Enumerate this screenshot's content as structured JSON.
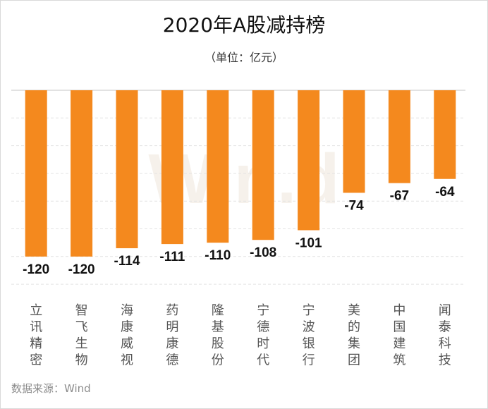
{
  "chart_data": {
    "type": "bar",
    "title": "2020年A股减持榜",
    "subtitle": "（单位：亿元）",
    "categories": [
      "立讯精密",
      "智飞生物",
      "海康威视",
      "药明康德",
      "隆基股份",
      "宁德时代",
      "宁波银行",
      "美的集团",
      "中国建筑",
      "闻泰科技"
    ],
    "values": [
      -120,
      -120,
      -114,
      -111,
      -110,
      -108,
      -101,
      -74,
      -67,
      -64
    ],
    "data_labels": [
      "-120",
      "-120",
      "-114",
      "-111",
      "-110",
      "-108",
      "-101",
      "-74",
      "-67",
      "-64"
    ],
    "ylim": [
      -140,
      0
    ],
    "grid": true,
    "xlabel": "",
    "ylabel": "",
    "bar_color": "#f4891e",
    "grid_color": "#e3e3e3",
    "watermark_color": "#f0e6dc",
    "watermark": "Win.d"
  },
  "source_note": "数据来源：Wind"
}
